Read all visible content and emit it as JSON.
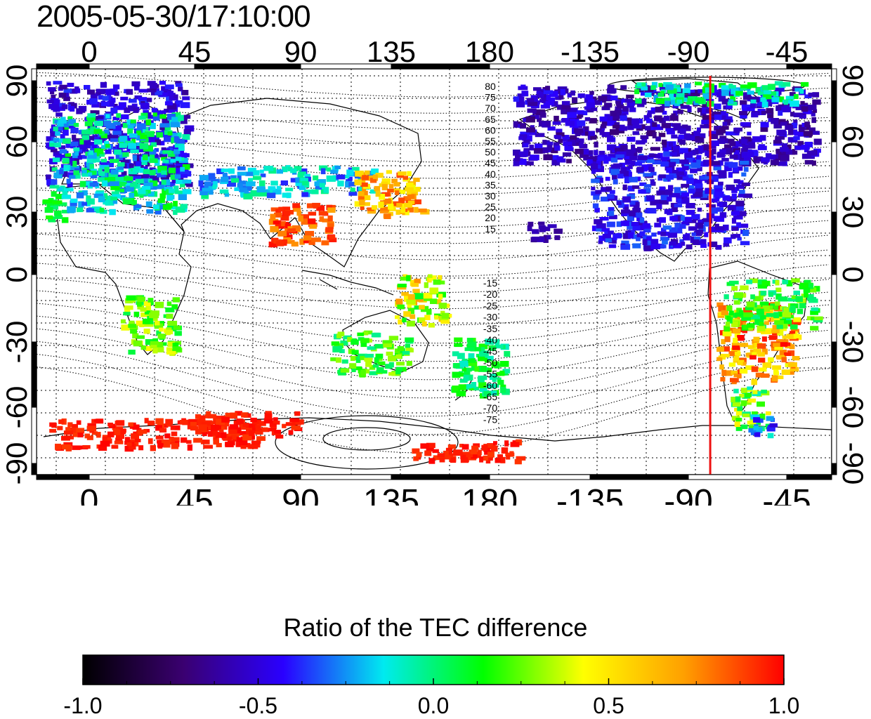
{
  "title": "2005-05-30/17:10:00",
  "map": {
    "top_ticks": [
      "0",
      "45",
      "90",
      "135",
      "180",
      "-135",
      "-90",
      "-45"
    ],
    "bottom_ticks": [
      "0",
      "45",
      "90",
      "135",
      "180",
      "-135",
      "-90",
      "-45"
    ],
    "left_ticks": [
      "90",
      "60",
      "30",
      "0",
      "-30",
      "-60",
      "-90"
    ],
    "right_ticks": [
      "90",
      "60",
      "30",
      "0",
      "-30",
      "-60",
      "-90"
    ],
    "contour_labels_north": [
      "80",
      "75",
      "70",
      "65",
      "60",
      "55",
      "50",
      "45",
      "40",
      "35",
      "30",
      "25",
      "20",
      "15"
    ],
    "contour_labels_south": [
      "-15",
      "-20",
      "-25",
      "-30",
      "-35",
      "-40",
      "-45",
      "-50",
      "-55",
      "-60",
      "-65",
      "-70",
      "-75"
    ],
    "marker_longitude": -80,
    "marker_color": "#ee1111"
  },
  "colorbar": {
    "title": "Ratio of the TEC difference",
    "tick_labels": [
      "-1.0",
      "-0.5",
      "0.0",
      "0.5",
      "1.0"
    ],
    "min": -1.0,
    "max": 1.0,
    "stops": [
      "#000000",
      "#3a0070",
      "#2a00ff",
      "#00eaf0",
      "#00ff00",
      "#ffff00",
      "#ffa000",
      "#ff0000"
    ]
  }
}
